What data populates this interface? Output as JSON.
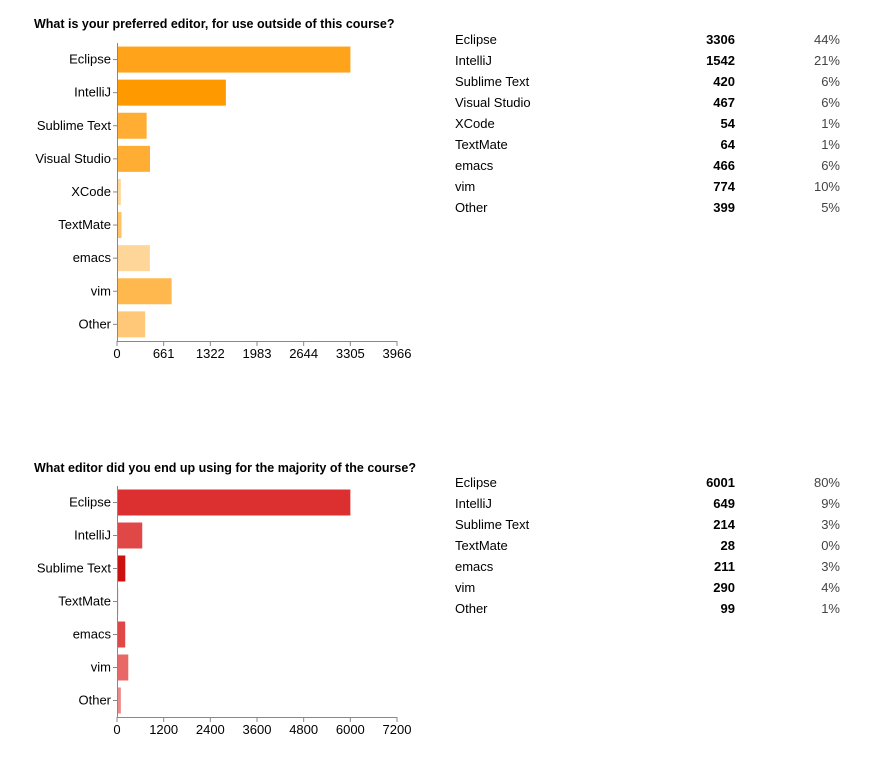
{
  "sections": [
    {
      "question": "What is your preferred editor, for use outside of this course?",
      "rows": [
        {
          "label": "Eclipse",
          "count": "3306",
          "pct": "44%"
        },
        {
          "label": "IntelliJ",
          "count": "1542",
          "pct": "21%"
        },
        {
          "label": "Sublime Text",
          "count": "420",
          "pct": "6%"
        },
        {
          "label": "Visual Studio",
          "count": "467",
          "pct": "6%"
        },
        {
          "label": "XCode",
          "count": "54",
          "pct": "1%"
        },
        {
          "label": "TextMate",
          "count": "64",
          "pct": "1%"
        },
        {
          "label": "emacs",
          "count": "466",
          "pct": "6%"
        },
        {
          "label": "vim",
          "count": "774",
          "pct": "10%"
        },
        {
          "label": "Other",
          "count": "399",
          "pct": "5%"
        }
      ]
    },
    {
      "question": "What editor did you end up using for the majority of the course?",
      "rows": [
        {
          "label": "Eclipse",
          "count": "6001",
          "pct": "80%"
        },
        {
          "label": "IntelliJ",
          "count": "649",
          "pct": "9%"
        },
        {
          "label": "Sublime Text",
          "count": "214",
          "pct": "3%"
        },
        {
          "label": "TextMate",
          "count": "28",
          "pct": "0%"
        },
        {
          "label": "emacs",
          "count": "211",
          "pct": "3%"
        },
        {
          "label": "vim",
          "count": "290",
          "pct": "4%"
        },
        {
          "label": "Other",
          "count": "99",
          "pct": "1%"
        }
      ]
    }
  ],
  "chart_data": [
    {
      "type": "bar",
      "orientation": "horizontal",
      "title": "What is your preferred editor, for use outside of this course?",
      "categories": [
        "Eclipse",
        "IntelliJ",
        "Sublime Text",
        "Visual Studio",
        "XCode",
        "TextMate",
        "emacs",
        "vim",
        "Other"
      ],
      "values": [
        3306,
        1542,
        420,
        467,
        54,
        64,
        466,
        774,
        399
      ],
      "colors": [
        "#ffa31a",
        "#ff9900",
        "#ffad33",
        "#ffad33",
        "#ffd699",
        "#ffc266",
        "#ffd699",
        "#ffb84d",
        "#ffc878"
      ],
      "xlim": [
        0,
        3966
      ],
      "xticks": [
        0,
        661,
        1322,
        1983,
        2644,
        3305,
        3966
      ],
      "grid": false
    },
    {
      "type": "bar",
      "orientation": "horizontal",
      "title": "What editor did you end up using for the majority of the course?",
      "categories": [
        "Eclipse",
        "IntelliJ",
        "Sublime Text",
        "TextMate",
        "emacs",
        "vim",
        "Other"
      ],
      "values": [
        6001,
        649,
        214,
        28,
        211,
        290,
        99
      ],
      "colors": [
        "#dc3030",
        "#e04848",
        "#cc1111",
        "#a83232",
        "#e04848",
        "#e86868",
        "#ec8888"
      ],
      "xlim": [
        0,
        7200
      ],
      "xticks": [
        0,
        1200,
        2400,
        3600,
        4800,
        6000,
        7200
      ],
      "grid": false
    }
  ]
}
